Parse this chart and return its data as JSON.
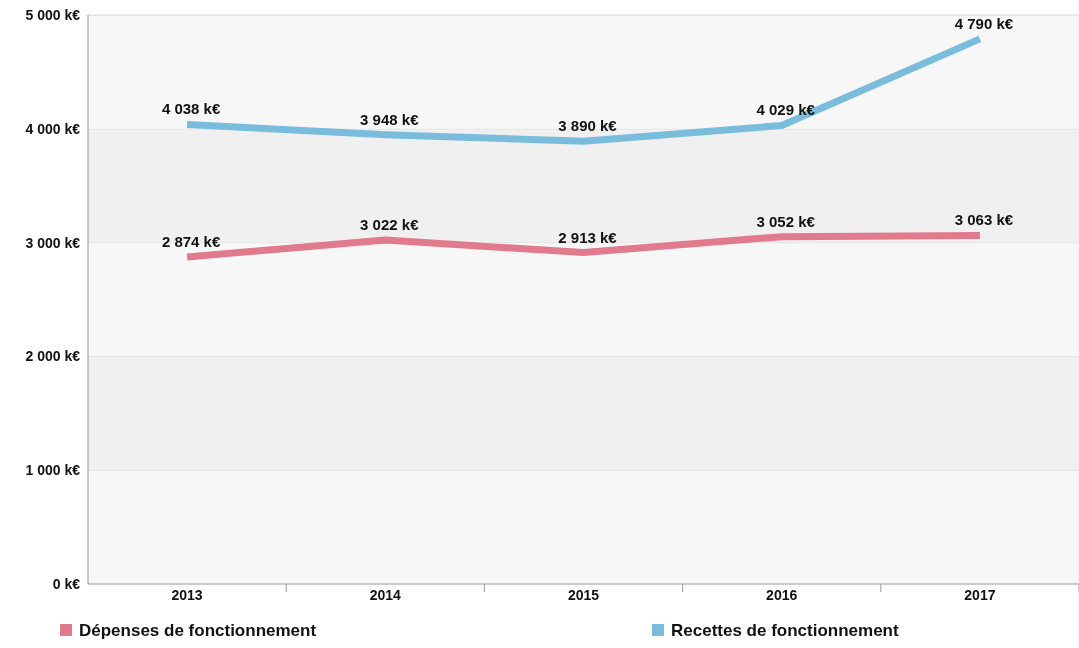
{
  "chart_data": {
    "type": "line",
    "categories": [
      "2013",
      "2014",
      "2015",
      "2016",
      "2017"
    ],
    "series": [
      {
        "name": "Dépenses de fonctionnement",
        "color": "#e07a8c",
        "values": [
          2874,
          3022,
          2913,
          3052,
          3063
        ],
        "value_labels": [
          "2 874 k€",
          "3 022 k€",
          "2 913 k€",
          "3 052 k€",
          "3 063 k€"
        ]
      },
      {
        "name": "Recettes de fonctionnement",
        "color": "#79bcdc",
        "values": [
          4038,
          3948,
          3890,
          4029,
          4790
        ],
        "value_labels": [
          "4 038 k€",
          "3 948 k€",
          "3 890 k€",
          "4 029 k€",
          "4 790 k€"
        ]
      }
    ],
    "ylim": [
      0,
      5000
    ],
    "yticks": [
      {
        "value": 0,
        "label": "0 k€"
      },
      {
        "value": 1000,
        "label": "1 000 k€"
      },
      {
        "value": 2000,
        "label": "2 000 k€"
      },
      {
        "value": 3000,
        "label": "3 000 k€"
      },
      {
        "value": 4000,
        "label": "4 000 k€"
      },
      {
        "value": 5000,
        "label": "5 000 k€"
      }
    ],
    "grid": "y",
    "legend": "bottom",
    "marker": "none",
    "line_style": "solid"
  }
}
